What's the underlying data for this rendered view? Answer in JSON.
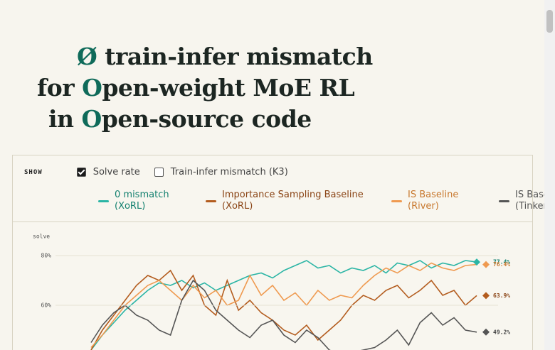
{
  "title_lines": [
    [
      "Ø",
      " train-infer mismatch"
    ],
    [
      "for ",
      "O",
      "pen-weight MoE RL"
    ],
    [
      "in ",
      "O",
      "pen-source code"
    ]
  ],
  "controls": {
    "show": "SHOW",
    "options": [
      {
        "label": "Solve rate",
        "checked": true
      },
      {
        "label": "Train-infer mismatch (K3)",
        "checked": false
      }
    ]
  },
  "chart_data": {
    "type": "line",
    "y_label": "solve",
    "ylim": [
      40,
      82
    ],
    "yticks": [
      {
        "value": 60,
        "label": "60%"
      },
      {
        "value": 80,
        "label": "80%"
      }
    ],
    "grid": true,
    "series": [
      {
        "name": "0 mismatch (XoRL)",
        "color": "#2bb5a5",
        "values": [
          42,
          48,
          53,
          58,
          62,
          66,
          69,
          68,
          70,
          67,
          69,
          66,
          68,
          70,
          72,
          73,
          71,
          74,
          76,
          78,
          75,
          76,
          73,
          75,
          74,
          76,
          73,
          77,
          76,
          78,
          75,
          77,
          76,
          78,
          77.4
        ],
        "end_value": 77.4,
        "end_value_label": "77.4%"
      },
      {
        "name": "Importance Sampling Baseline (XoRL)",
        "color": "#b35c1e",
        "values": [
          42,
          50,
          56,
          62,
          68,
          72,
          70,
          74,
          66,
          72,
          60,
          56,
          70,
          58,
          62,
          57,
          54,
          50,
          48,
          52,
          46,
          50,
          54,
          60,
          64,
          62,
          66,
          68,
          63,
          66,
          70,
          64,
          66,
          60,
          63.9
        ],
        "end_value": 63.9,
        "end_value_label": "63.9%"
      },
      {
        "name": "IS Baseline (River)",
        "color": "#ef9a50",
        "values": [
          43,
          48,
          54,
          60,
          64,
          68,
          70,
          66,
          62,
          68,
          63,
          66,
          60,
          62,
          72,
          64,
          68,
          62,
          65,
          60,
          66,
          62,
          64,
          63,
          68,
          72,
          75,
          73,
          76,
          74,
          77,
          75,
          74,
          76,
          76.4
        ],
        "end_value": 76.4,
        "end_value_label": "76.4%"
      },
      {
        "name": "IS Baseline (Tinker)",
        "color": "#555555",
        "values": [
          45,
          52,
          57,
          60,
          56,
          54,
          50,
          48,
          62,
          70,
          66,
          58,
          54,
          50,
          47,
          52,
          54,
          48,
          45,
          50,
          47,
          42,
          40,
          41,
          42,
          43,
          46,
          50,
          44,
          53,
          57,
          52,
          55,
          50,
          49.2
        ],
        "end_value": 49.2,
        "end_value_label": "49.2%"
      }
    ]
  }
}
